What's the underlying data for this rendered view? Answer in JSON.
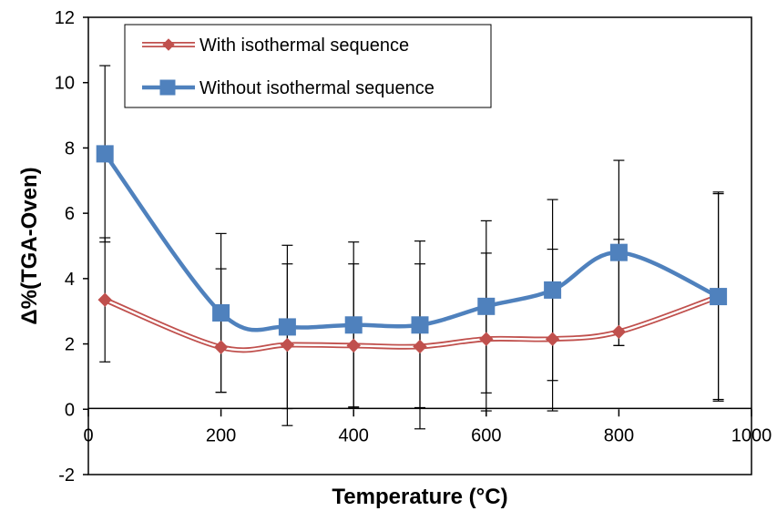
{
  "chart_data": {
    "type": "line",
    "xlabel": "Temperature (°C)",
    "ylabel": "Δ%(TGA-Oven)",
    "xlim": [
      0,
      1000
    ],
    "ylim": [
      -2,
      12
    ],
    "x_ticks": [
      "0",
      "200",
      "400",
      "600",
      "800",
      "1000"
    ],
    "y_ticks": [
      "-2",
      "0",
      "2",
      "4",
      "6",
      "8",
      "10",
      "12"
    ],
    "grid": false,
    "legend_position": "top-left",
    "x": [
      25,
      200,
      300,
      400,
      500,
      600,
      700,
      800,
      950
    ],
    "series": [
      {
        "name": "With isothermal sequence",
        "color": "#C0504D",
        "marker": "diamond",
        "values": [
          3.35,
          1.9,
          1.97,
          1.95,
          1.92,
          2.15,
          2.15,
          2.37,
          3.45
        ],
        "error_low": [
          1.45,
          0.52,
          0.02,
          0.07,
          0.05,
          0.5,
          0.88,
          1.95,
          0.3
        ],
        "error_high": [
          5.25,
          4.3,
          4.45,
          4.45,
          4.45,
          4.78,
          4.9,
          5.2,
          6.6
        ]
      },
      {
        "name": "Without isothermal sequence",
        "color": "#4F81BD",
        "marker": "square",
        "values": [
          7.82,
          2.95,
          2.52,
          2.58,
          2.58,
          3.15,
          3.65,
          4.8,
          3.45
        ],
        "error_low": [
          5.12,
          0.52,
          -0.5,
          0.04,
          -0.6,
          -0.05,
          -0.05,
          1.95,
          0.25
        ],
        "error_high": [
          10.52,
          5.38,
          5.02,
          5.12,
          5.15,
          5.77,
          6.42,
          7.62,
          6.65
        ]
      }
    ]
  }
}
